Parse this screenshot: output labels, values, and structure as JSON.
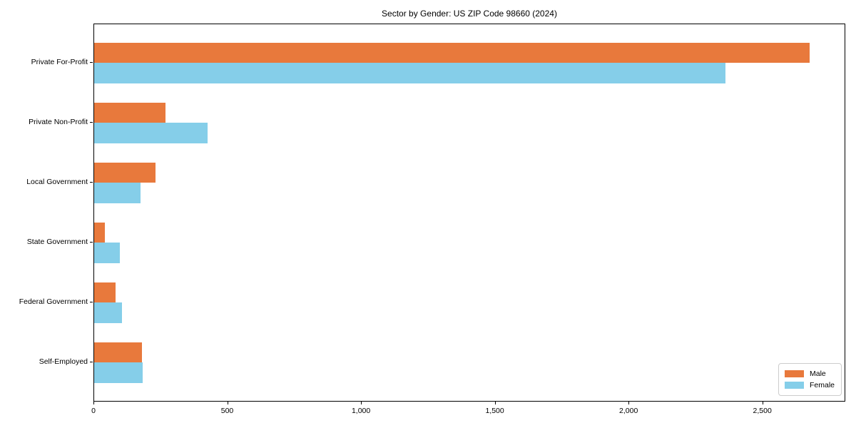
{
  "title": "Sector by Gender: US ZIP Code 98660 (2024)",
  "colors": {
    "male": "#E8793C",
    "female": "#85CEE9",
    "axis": "#000000",
    "background": "#ffffff",
    "legend_border": "#cccccc"
  },
  "legend": {
    "position": "lower right",
    "items": [
      {
        "label": "Male",
        "color": "#E8793C"
      },
      {
        "label": "Female",
        "color": "#85CEE9"
      }
    ]
  },
  "chart_data": {
    "type": "bar",
    "orientation": "horizontal",
    "title": "Sector by Gender: US ZIP Code 98660 (2024)",
    "categories": [
      "Private For-Profit",
      "Private Non-Profit",
      "Local Government",
      "State Government",
      "Federal Government",
      "Self-Employed"
    ],
    "series": [
      {
        "name": "Male",
        "color": "#E8793C",
        "values": [
          2675,
          267,
          229,
          41,
          80,
          179
        ]
      },
      {
        "name": "Female",
        "color": "#85CEE9",
        "values": [
          2360,
          425,
          174,
          96,
          103,
          182
        ]
      }
    ],
    "xlabel": "",
    "ylabel": "",
    "xlim": [
      0,
      2810
    ],
    "x_ticks": [
      0,
      500,
      1000,
      1500,
      2000,
      2500
    ],
    "x_tick_labels": [
      "0",
      "500",
      "1,000",
      "1,500",
      "2,000",
      "2,500"
    ],
    "grid": false,
    "legend_position": "lower right"
  }
}
